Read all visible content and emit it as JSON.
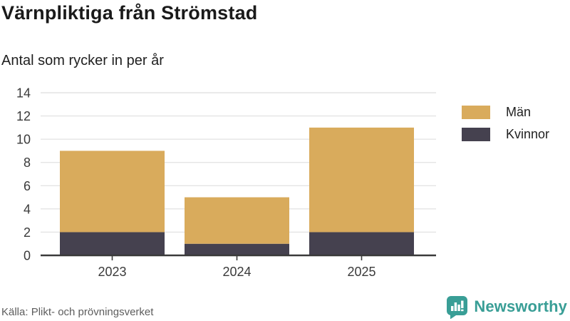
{
  "header": {
    "title": "Värnpliktiga från Strömstad",
    "subtitle": "Antal som rycker in per år"
  },
  "chart_data": {
    "type": "bar",
    "stacked": true,
    "categories": [
      "2023",
      "2024",
      "2025"
    ],
    "series": [
      {
        "name": "Män",
        "color": "#d9ab5c",
        "values": [
          7,
          4,
          9
        ]
      },
      {
        "name": "Kvinnor",
        "color": "#45414f",
        "values": [
          2,
          1,
          2
        ]
      }
    ],
    "stack_order_bottom_to_top": [
      "Kvinnor",
      "Män"
    ],
    "totals": [
      9,
      5,
      11
    ],
    "title": "Värnpliktiga från Strömstad",
    "subtitle": "Antal som rycker in per år",
    "xlabel": "",
    "ylabel": "",
    "ylim": [
      0,
      14
    ],
    "ytick_step": 2,
    "yticks": [
      0,
      2,
      4,
      6,
      8,
      10,
      12,
      14
    ],
    "grid": true,
    "legend_position": "right"
  },
  "colors": {
    "grid_line": "#e4e4e4",
    "axis_line": "#3a3a3a",
    "tick_label": "#3a3a3a",
    "brand_teal": "#399e96"
  },
  "footer": {
    "source": "Källa: Plikt- och prövningsverket",
    "brand": "Newsworthy"
  },
  "icons": {
    "brand_icon": "bar-chart-speech-bubble-icon"
  }
}
